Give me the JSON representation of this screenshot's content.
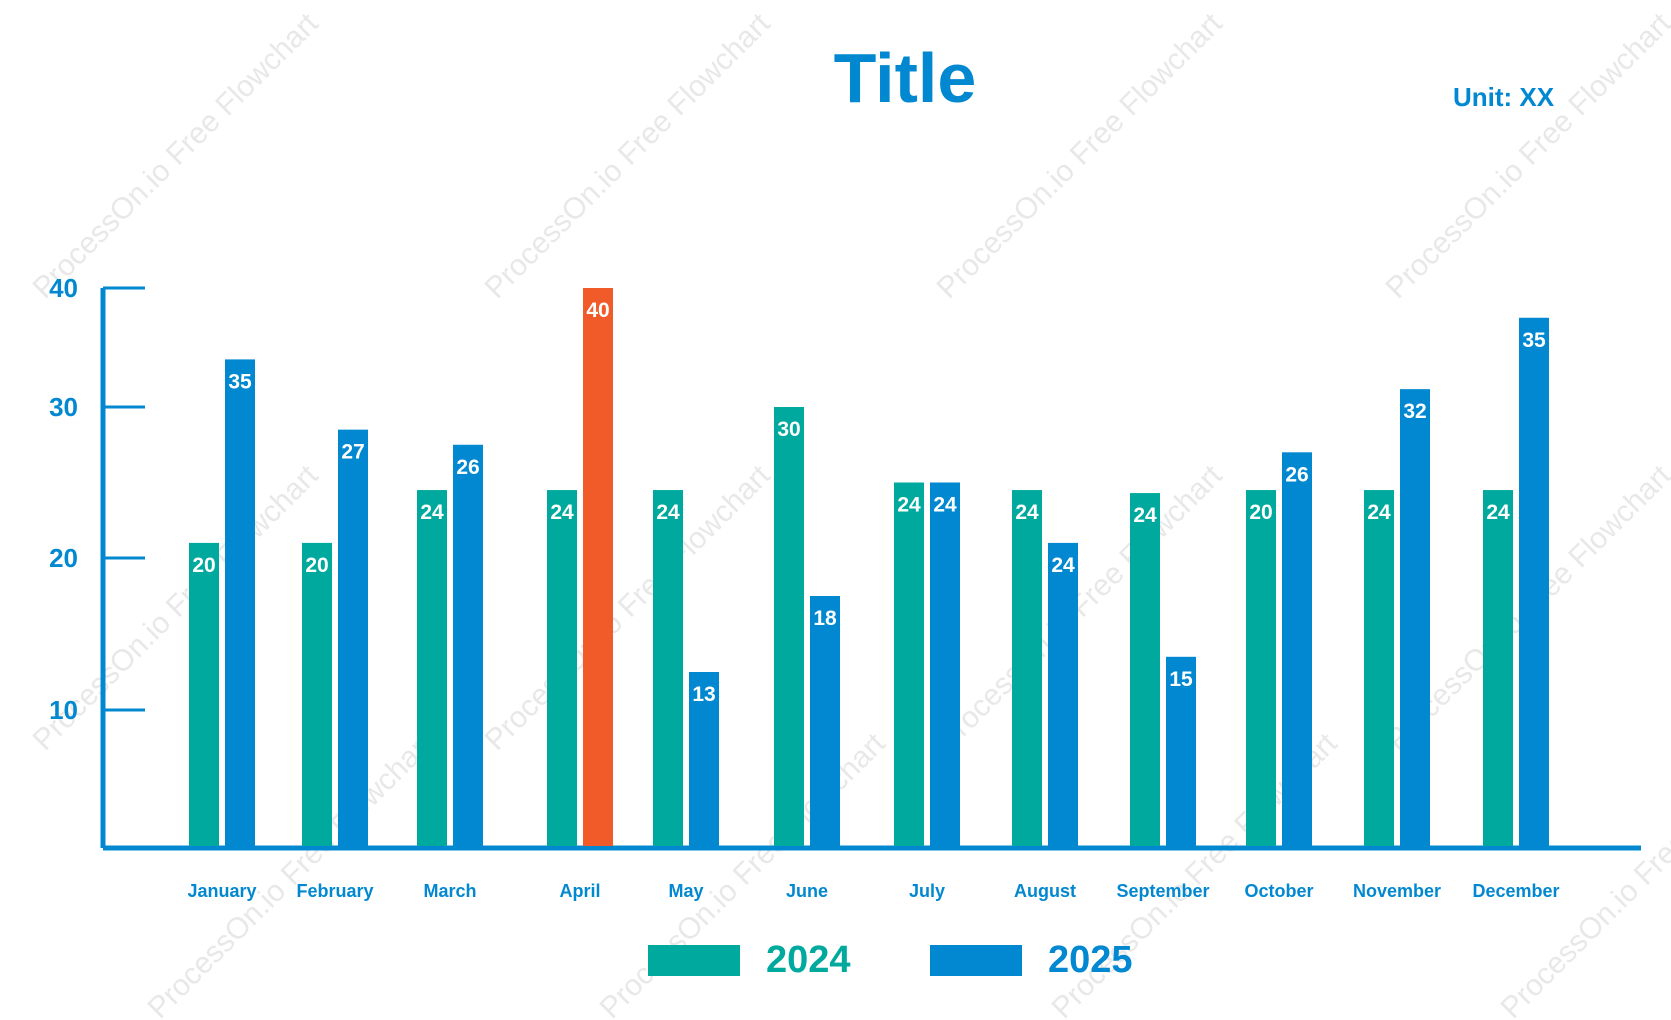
{
  "chart_data": {
    "type": "bar",
    "title": "Title",
    "unit": "Unit: XX",
    "categories": [
      "January",
      "February",
      "March",
      "April",
      "May",
      "June",
      "July",
      "August",
      "September",
      "October",
      "November",
      "December"
    ],
    "series": [
      {
        "name": "2024",
        "color": "#00a99d",
        "values": [
          20,
          20,
          24,
          24,
          24,
          30,
          24,
          24,
          24,
          20,
          24,
          24
        ],
        "bar_tops": [
          21,
          21,
          24.5,
          24.5,
          24.5,
          30,
          25,
          24.5,
          24.3,
          24.5,
          24.5,
          24.5
        ]
      },
      {
        "name": "2025",
        "color": "#0288d1",
        "values": [
          35,
          27,
          26,
          40,
          13,
          18,
          24,
          24,
          15,
          26,
          32,
          35
        ],
        "bar_tops": [
          34,
          28.5,
          27.5,
          40,
          12.5,
          17.5,
          25,
          21,
          13.5,
          27,
          31.5,
          37.5
        ]
      }
    ],
    "highlight": {
      "series": 1,
      "index": 3,
      "color": "#f15a29"
    },
    "yticks": [
      10,
      20,
      30,
      40
    ],
    "ylim": [
      0,
      40
    ],
    "xlabel": "",
    "ylabel": "",
    "grid": false,
    "legend_position": "bottom-center"
  },
  "watermark_text": "ProcessOn.io Free Flowchart"
}
